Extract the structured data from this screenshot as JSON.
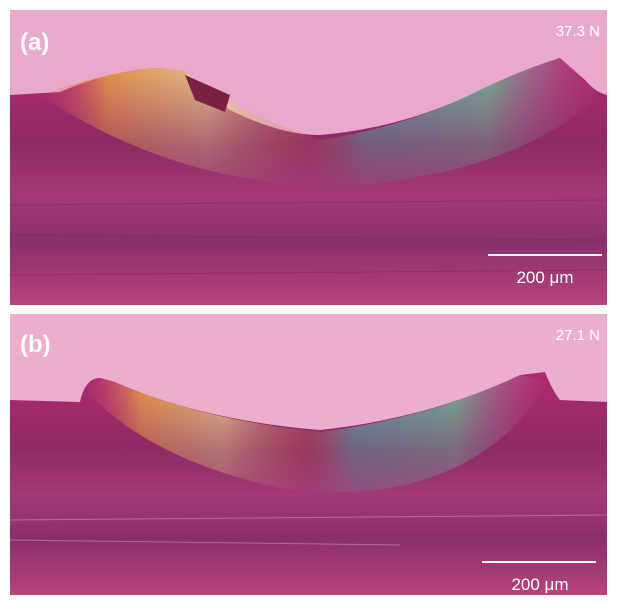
{
  "panels": [
    {
      "label": "(a)",
      "load": "37.3 N",
      "scale_bar": "200 μm"
    },
    {
      "label": "(b)",
      "load": "27.1 N",
      "scale_bar": "200 μm"
    }
  ]
}
